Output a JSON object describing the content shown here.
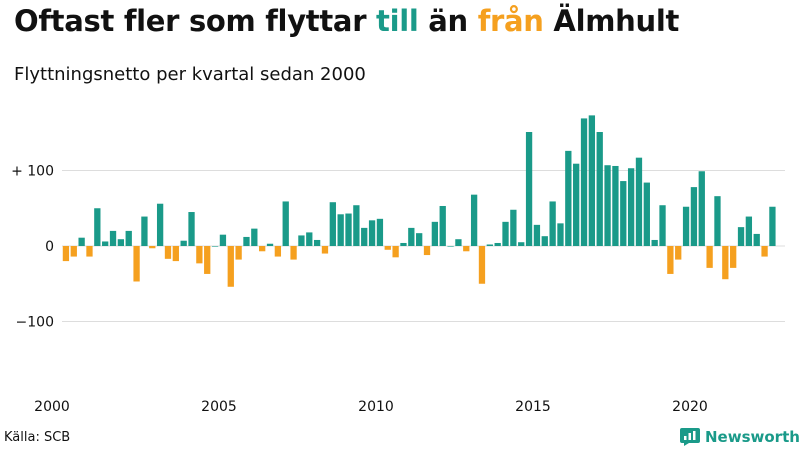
{
  "title": {
    "part1": "Oftast fler som flyttar ",
    "till": "till",
    "part2": " än ",
    "fran": "från",
    "part3": " Älmhult"
  },
  "subtitle": "Flyttningsnetto per kvartal sedan 2000",
  "source": "Källa: SCB",
  "brand": {
    "name": "Newsworthy",
    "icon": "newsworthy-logo-icon"
  },
  "colors": {
    "positive": "#1a9a89",
    "negative": "#f5a01f",
    "grid": "#dddddd"
  },
  "chart_data": {
    "type": "bar",
    "x_start": "2000 Q1",
    "x_ticks": [
      "2000",
      "2005",
      "2010",
      "2015",
      "2020"
    ],
    "y_ticks": [
      {
        "value": 100,
        "label": "+ 100"
      },
      {
        "value": 0,
        "label": "0"
      },
      {
        "value": -100,
        "label": "−100"
      }
    ],
    "ylim": [
      -185,
      185
    ],
    "grid": true,
    "values": [
      -20,
      -14,
      11,
      -14,
      50,
      6,
      20,
      9,
      20,
      -47,
      39,
      -3,
      56,
      -17,
      -20,
      7,
      45,
      -23,
      -37,
      0,
      15,
      -54,
      -18,
      12,
      23,
      -7,
      3,
      -14,
      59,
      -18,
      14,
      18,
      8,
      -10,
      58,
      42,
      43,
      54,
      24,
      34,
      36,
      -5,
      -15,
      4,
      24,
      17,
      -12,
      32,
      53,
      0,
      9,
      -7,
      68,
      -50,
      2,
      4,
      32,
      48,
      5,
      151,
      28,
      13,
      59,
      30,
      126,
      109,
      169,
      173,
      151,
      107,
      106,
      86,
      103,
      117,
      84,
      8,
      54,
      -37,
      -18,
      52,
      78,
      99,
      -29,
      66,
      -44,
      -29,
      25,
      39,
      16,
      -14,
      52
    ]
  }
}
